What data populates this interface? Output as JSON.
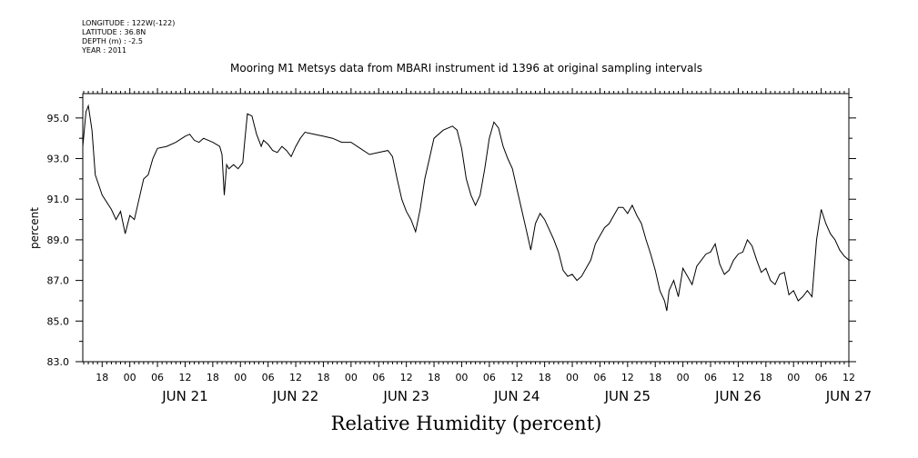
{
  "header": {
    "longitude": "LONGITUDE : 122W(-122)",
    "latitude": "LATITUDE : 36.8N",
    "depth": "DEPTH (m) : -2.5",
    "year": "YEAR : 2011"
  },
  "chart_data": {
    "type": "line",
    "title": "Mooring M1 Metsys data from MBARI instrument id 1396 at original sampling intervals",
    "xlabel": "Relative Humidity (percent)",
    "ylabel": "percent",
    "ylim": [
      83.0,
      96.2
    ],
    "yticks": [
      "83.0",
      "85.0",
      "87.0",
      "89.0",
      "91.0",
      "93.0",
      "95.0"
    ],
    "hour_tick_labels": [
      "00",
      "06",
      "12",
      "18"
    ],
    "day_labels": [
      "JUN 21",
      "JUN 22",
      "JUN 23",
      "JUN 24",
      "JUN 25",
      "JUN 26",
      "JUN 27"
    ],
    "x_unit": "hours since 2011-06-20 00:00",
    "xlim": [
      13.8,
      180.0
    ],
    "series": [
      {
        "name": "",
        "points": [
          [
            13.8,
            93.6
          ],
          [
            14.5,
            95.3
          ],
          [
            15.0,
            95.6
          ],
          [
            15.8,
            94.4
          ],
          [
            16.5,
            92.2
          ],
          [
            18.0,
            91.2
          ],
          [
            20.0,
            90.5
          ],
          [
            21.0,
            90.0
          ],
          [
            22.0,
            90.4
          ],
          [
            23.0,
            89.3
          ],
          [
            24.0,
            90.2
          ],
          [
            25.0,
            90.0
          ],
          [
            26.0,
            91.0
          ],
          [
            27.0,
            92.0
          ],
          [
            28.0,
            92.2
          ],
          [
            29.0,
            93.0
          ],
          [
            30.0,
            93.5
          ],
          [
            32.0,
            93.6
          ],
          [
            34.0,
            93.8
          ],
          [
            36.0,
            94.1
          ],
          [
            37.0,
            94.2
          ],
          [
            38.0,
            93.9
          ],
          [
            39.0,
            93.8
          ],
          [
            40.0,
            94.0
          ],
          [
            42.0,
            93.8
          ],
          [
            43.5,
            93.6
          ],
          [
            44.0,
            93.2
          ],
          [
            44.5,
            91.2
          ],
          [
            45.0,
            92.7
          ],
          [
            45.5,
            92.5
          ],
          [
            46.5,
            92.7
          ],
          [
            47.5,
            92.5
          ],
          [
            48.5,
            92.8
          ],
          [
            49.0,
            94.0
          ],
          [
            49.5,
            95.2
          ],
          [
            50.5,
            95.1
          ],
          [
            51.5,
            94.2
          ],
          [
            52.5,
            93.6
          ],
          [
            53.0,
            93.9
          ],
          [
            54.0,
            93.7
          ],
          [
            55.0,
            93.4
          ],
          [
            56.0,
            93.3
          ],
          [
            57.0,
            93.6
          ],
          [
            58.0,
            93.4
          ],
          [
            59.0,
            93.1
          ],
          [
            60.0,
            93.6
          ],
          [
            61.0,
            94.0
          ],
          [
            62.0,
            94.3
          ],
          [
            64.0,
            94.2
          ],
          [
            66.0,
            94.1
          ],
          [
            68.0,
            94.0
          ],
          [
            70.0,
            93.8
          ],
          [
            72.0,
            93.8
          ],
          [
            74.0,
            93.5
          ],
          [
            76.0,
            93.2
          ],
          [
            78.0,
            93.3
          ],
          [
            80.0,
            93.4
          ],
          [
            81.0,
            93.1
          ],
          [
            82.0,
            92.0
          ],
          [
            83.0,
            91.0
          ],
          [
            84.0,
            90.4
          ],
          [
            85.0,
            90.0
          ],
          [
            86.0,
            89.4
          ],
          [
            87.0,
            90.5
          ],
          [
            88.0,
            92.0
          ],
          [
            89.0,
            93.0
          ],
          [
            90.0,
            94.0
          ],
          [
            92.0,
            94.4
          ],
          [
            94.0,
            94.6
          ],
          [
            95.0,
            94.4
          ],
          [
            96.0,
            93.5
          ],
          [
            97.0,
            92.0
          ],
          [
            98.0,
            91.2
          ],
          [
            99.0,
            90.7
          ],
          [
            100.0,
            91.2
          ],
          [
            101.0,
            92.5
          ],
          [
            102.0,
            94.0
          ],
          [
            103.0,
            94.8
          ],
          [
            104.0,
            94.5
          ],
          [
            105.0,
            93.6
          ],
          [
            106.0,
            93.0
          ],
          [
            107.0,
            92.5
          ],
          [
            108.0,
            91.5
          ],
          [
            109.0,
            90.5
          ],
          [
            110.0,
            89.5
          ],
          [
            111.0,
            88.5
          ],
          [
            112.0,
            89.8
          ],
          [
            113.0,
            90.3
          ],
          [
            114.0,
            90.0
          ],
          [
            115.0,
            89.5
          ],
          [
            116.0,
            89.0
          ],
          [
            117.0,
            88.4
          ],
          [
            118.0,
            87.5
          ],
          [
            119.0,
            87.2
          ],
          [
            120.0,
            87.3
          ],
          [
            121.0,
            87.0
          ],
          [
            122.0,
            87.2
          ],
          [
            123.0,
            87.6
          ],
          [
            124.0,
            88.0
          ],
          [
            125.0,
            88.8
          ],
          [
            126.0,
            89.2
          ],
          [
            127.0,
            89.6
          ],
          [
            128.0,
            89.8
          ],
          [
            129.0,
            90.2
          ],
          [
            130.0,
            90.6
          ],
          [
            131.0,
            90.6
          ],
          [
            132.0,
            90.3
          ],
          [
            133.0,
            90.7
          ],
          [
            134.0,
            90.2
          ],
          [
            135.0,
            89.8
          ],
          [
            136.0,
            89.0
          ],
          [
            137.0,
            88.3
          ],
          [
            138.0,
            87.5
          ],
          [
            139.0,
            86.5
          ],
          [
            140.0,
            86.0
          ],
          [
            140.5,
            85.5
          ],
          [
            141.0,
            86.5
          ],
          [
            142.0,
            87.0
          ],
          [
            143.0,
            86.2
          ],
          [
            144.0,
            87.6
          ],
          [
            145.0,
            87.2
          ],
          [
            146.0,
            86.8
          ],
          [
            147.0,
            87.7
          ],
          [
            148.0,
            88.0
          ],
          [
            149.0,
            88.3
          ],
          [
            150.0,
            88.4
          ],
          [
            151.0,
            88.8
          ],
          [
            152.0,
            87.8
          ],
          [
            153.0,
            87.3
          ],
          [
            154.0,
            87.5
          ],
          [
            155.0,
            88.0
          ],
          [
            156.0,
            88.3
          ],
          [
            157.0,
            88.4
          ],
          [
            158.0,
            89.0
          ],
          [
            159.0,
            88.7
          ],
          [
            160.0,
            88.0
          ],
          [
            161.0,
            87.4
          ],
          [
            162.0,
            87.6
          ],
          [
            163.0,
            87.0
          ],
          [
            164.0,
            86.8
          ],
          [
            165.0,
            87.3
          ],
          [
            166.0,
            87.4
          ],
          [
            167.0,
            86.3
          ],
          [
            168.0,
            86.5
          ],
          [
            169.0,
            86.0
          ],
          [
            170.0,
            86.2
          ],
          [
            171.0,
            86.5
          ],
          [
            172.0,
            86.2
          ],
          [
            173.0,
            89.0
          ],
          [
            174.0,
            90.5
          ],
          [
            175.0,
            89.8
          ],
          [
            176.0,
            89.3
          ],
          [
            177.0,
            89.0
          ],
          [
            178.0,
            88.5
          ],
          [
            179.0,
            88.2
          ],
          [
            180.0,
            88.0
          ]
        ]
      }
    ]
  }
}
